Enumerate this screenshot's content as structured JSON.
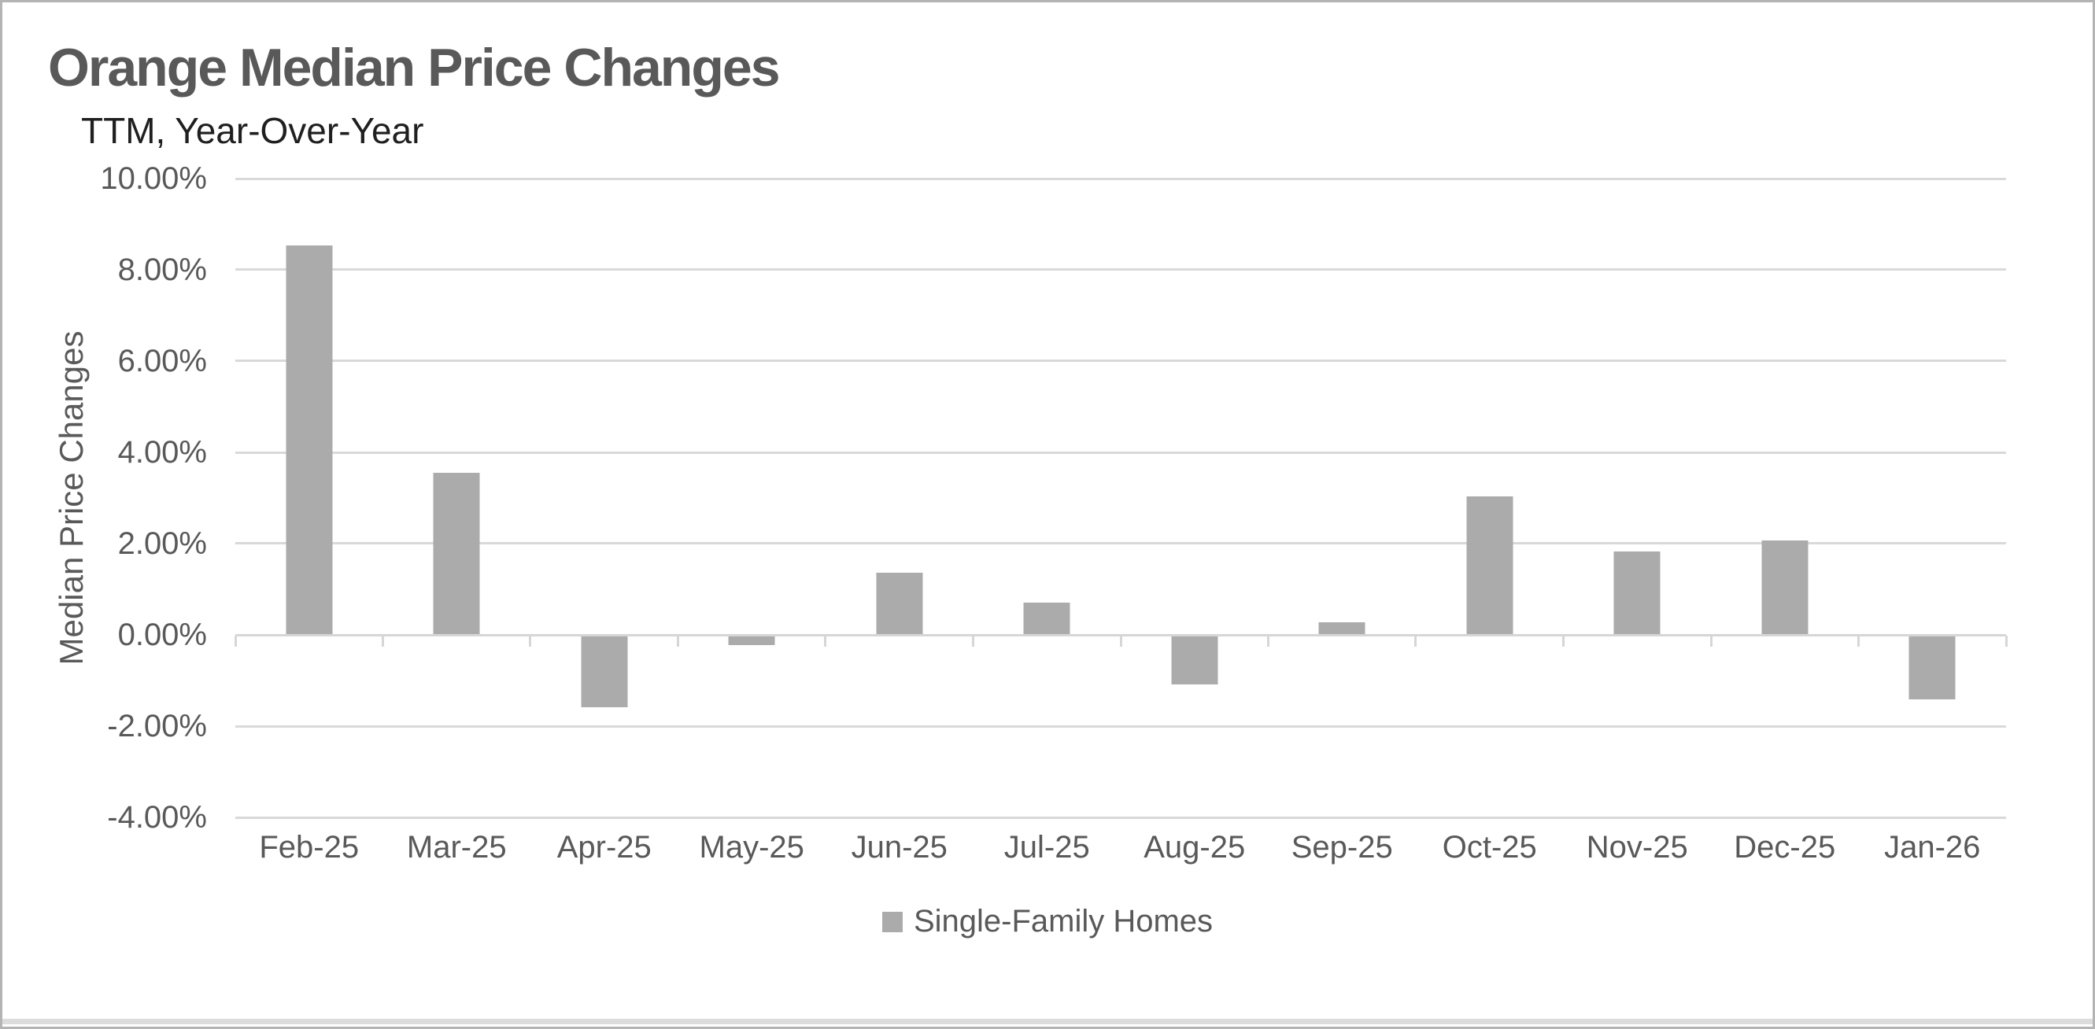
{
  "header": {
    "title": "Orange Median Price Changes",
    "subtitle": "TTM, Year-Over-Year"
  },
  "colors": {
    "bar": "#ababab",
    "gridline": "#d9d9d9",
    "axis_line": "#d6d6d6",
    "title_text": "#595959",
    "subtitle_text": "#1f1f1f",
    "axis_text": "#595959",
    "frame_border": "#b4b4b4"
  },
  "legend": {
    "label": "Single-Family Homes"
  },
  "chart_data": {
    "type": "bar",
    "title": "Orange Median Price Changes",
    "subtitle": "TTM, Year-Over-Year",
    "xlabel": "",
    "ylabel": "Median Price Changes",
    "categories": [
      "Feb-25",
      "Mar-25",
      "Apr-25",
      "May-25",
      "Jun-25",
      "Jul-25",
      "Aug-25",
      "Sep-25",
      "Oct-25",
      "Nov-25",
      "Dec-25",
      "Jan-26"
    ],
    "series": [
      {
        "name": "Single-Family Homes",
        "values": [
          8.53,
          3.55,
          -1.58,
          -0.22,
          1.36,
          0.71,
          -1.08,
          0.27,
          3.04,
          1.82,
          2.07,
          -1.42
        ]
      }
    ],
    "value_unit": "percent",
    "ylim": [
      -4,
      10
    ],
    "yticks": [
      10,
      8,
      6,
      4,
      2,
      0,
      -2,
      -4
    ],
    "ytick_labels": [
      "10.00%",
      "8.00%",
      "6.00%",
      "4.00%",
      "2.00%",
      "0.00%",
      "-2.00%",
      "-4.00%"
    ],
    "grid": true,
    "legend_position": "bottom"
  }
}
